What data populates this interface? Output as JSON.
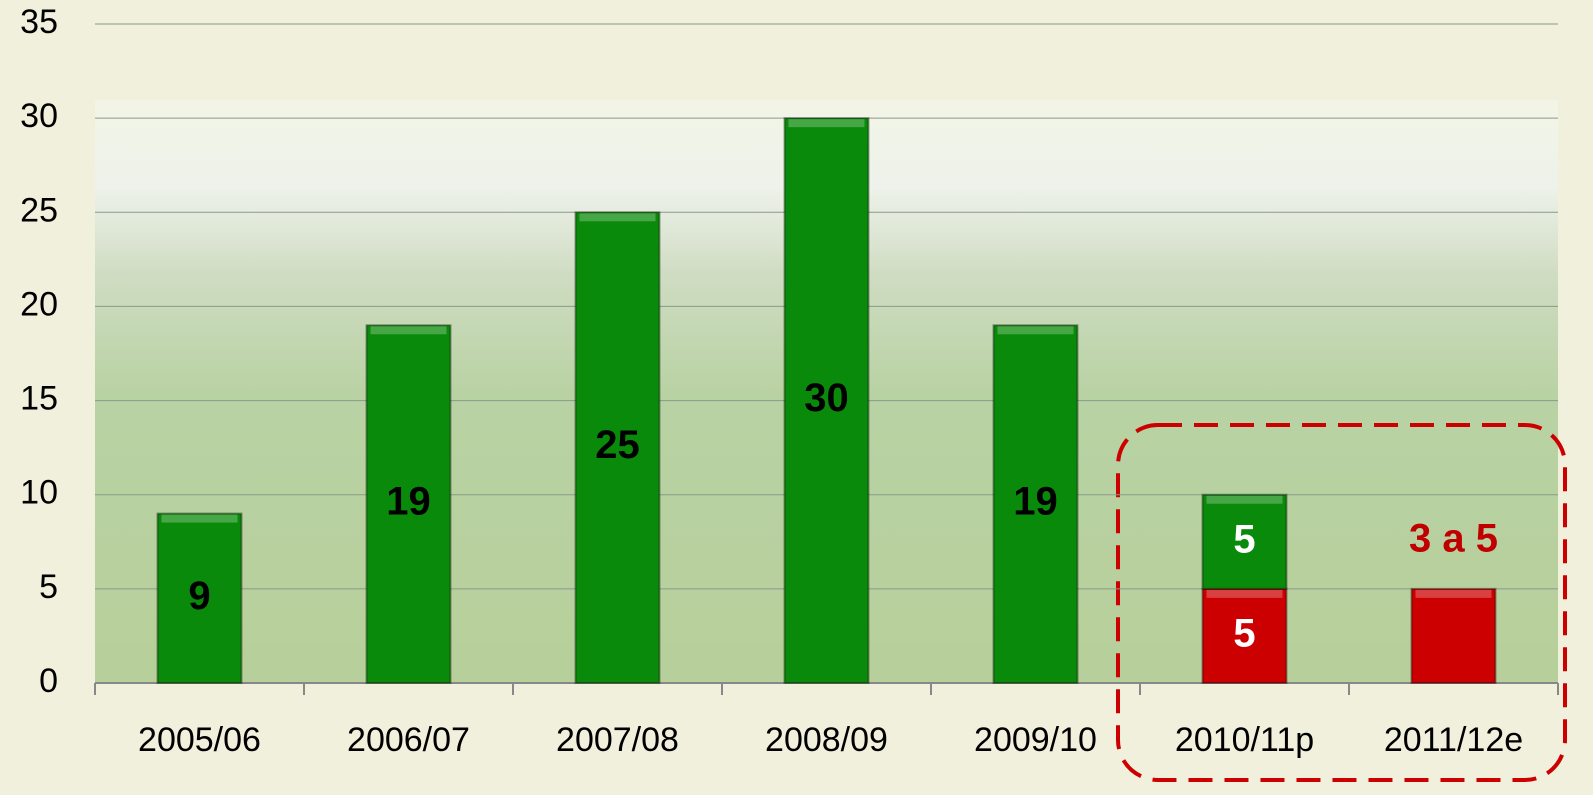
{
  "chart_data": {
    "type": "stacked-bar",
    "categories": [
      "2005/06",
      "2006/07",
      "2007/08",
      "2008/09",
      "2009/10",
      "2010/11p",
      "2011/12e"
    ],
    "series": [
      {
        "color": "#cc0000",
        "values": [
          null,
          null,
          null,
          null,
          null,
          5,
          5
        ],
        "value_labels": [
          null,
          null,
          null,
          null,
          null,
          "5",
          null
        ]
      },
      {
        "color": "#0a8a0a",
        "values": [
          9,
          19,
          25,
          30,
          19,
          5,
          null
        ],
        "value_labels": [
          "9",
          "19",
          "25",
          "30",
          "19",
          "5",
          null
        ]
      }
    ],
    "annotations": [
      "3 a 5"
    ],
    "ylim": [
      0,
      35
    ],
    "yticks": [
      0,
      5,
      10,
      15,
      20,
      25,
      30,
      35
    ],
    "grid": true
  }
}
